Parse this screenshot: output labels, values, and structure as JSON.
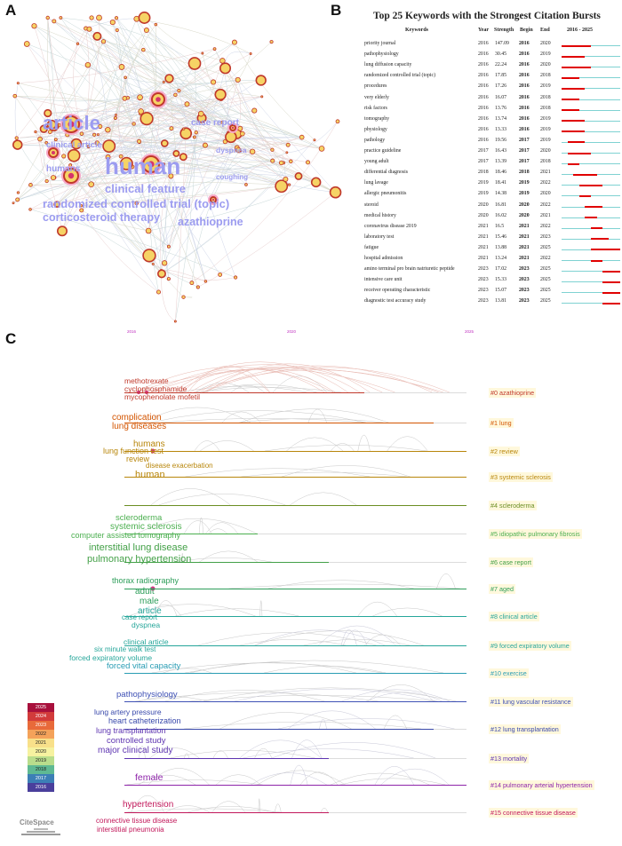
{
  "panels": {
    "a": "A",
    "b": "B",
    "c": "C"
  },
  "network": {
    "keywords": [
      {
        "text": "article",
        "color": "#9c9cf0"
      },
      {
        "text": "human",
        "color": "#9c9cf0"
      },
      {
        "text": "case report",
        "color": "#9c9cf0"
      },
      {
        "text": "clinical article",
        "color": "#9c9cf0"
      },
      {
        "text": "dyspnea",
        "color": "#9c9cf0"
      },
      {
        "text": "humans",
        "color": "#9c9cf0"
      },
      {
        "text": "clinical feature",
        "color": "#9c9cf0"
      },
      {
        "text": "coughing",
        "color": "#9c9cf0"
      },
      {
        "text": "randomized controlled trial (topic)",
        "color": "#9c9cf0"
      },
      {
        "text": "corticosteroid therapy",
        "color": "#9c9cf0"
      },
      {
        "text": "azathioprine",
        "color": "#9c9cf0"
      }
    ]
  },
  "bursts": {
    "title": "Top 25 Keywords with the Strongest Citation Bursts",
    "headers": {
      "keywords": "Keywords",
      "year": "Year",
      "strength": "Strength",
      "begin": "Begin",
      "end": "End",
      "range": "2016 - 2025"
    },
    "range_start": 2016,
    "range_end": 2025,
    "rows": [
      {
        "keyword": "priority journal",
        "year": "2016",
        "strength": "147.09",
        "begin": "2016",
        "end": "2020"
      },
      {
        "keyword": "pathophysiology",
        "year": "2016",
        "strength": "30.45",
        "begin": "2016",
        "end": "2019"
      },
      {
        "keyword": "lung diffusion capacity",
        "year": "2016",
        "strength": "22.24",
        "begin": "2016",
        "end": "2020"
      },
      {
        "keyword": "randomized controlled trial (topic)",
        "year": "2016",
        "strength": "17.85",
        "begin": "2016",
        "end": "2018"
      },
      {
        "keyword": "procedures",
        "year": "2016",
        "strength": "17.26",
        "begin": "2016",
        "end": "2019"
      },
      {
        "keyword": "very elderly",
        "year": "2016",
        "strength": "16.07",
        "begin": "2016",
        "end": "2018"
      },
      {
        "keyword": "risk factors",
        "year": "2016",
        "strength": "13.76",
        "begin": "2016",
        "end": "2018"
      },
      {
        "keyword": "tomography",
        "year": "2016",
        "strength": "13.74",
        "begin": "2016",
        "end": "2019"
      },
      {
        "keyword": "physiology",
        "year": "2016",
        "strength": "13.33",
        "begin": "2016",
        "end": "2019"
      },
      {
        "keyword": "pathology",
        "year": "2016",
        "strength": "19.56",
        "begin": "2017",
        "end": "2019"
      },
      {
        "keyword": "practice guideline",
        "year": "2017",
        "strength": "16.43",
        "begin": "2017",
        "end": "2020"
      },
      {
        "keyword": "young adult",
        "year": "2017",
        "strength": "13.39",
        "begin": "2017",
        "end": "2018"
      },
      {
        "keyword": "differential diagnosis",
        "year": "2018",
        "strength": "18.46",
        "begin": "2018",
        "end": "2021"
      },
      {
        "keyword": "lung lavage",
        "year": "2019",
        "strength": "18.41",
        "begin": "2019",
        "end": "2022"
      },
      {
        "keyword": "allergic pneumonitis",
        "year": "2019",
        "strength": "14.38",
        "begin": "2019",
        "end": "2020"
      },
      {
        "keyword": "steroid",
        "year": "2020",
        "strength": "16.81",
        "begin": "2020",
        "end": "2022"
      },
      {
        "keyword": "medical history",
        "year": "2020",
        "strength": "16.02",
        "begin": "2020",
        "end": "2021"
      },
      {
        "keyword": "coronavirus disease 2019",
        "year": "2021",
        "strength": "16.5",
        "begin": "2021",
        "end": "2022"
      },
      {
        "keyword": "laboratory test",
        "year": "2021",
        "strength": "15.46",
        "begin": "2021",
        "end": "2023"
      },
      {
        "keyword": "fatigue",
        "year": "2021",
        "strength": "13.88",
        "begin": "2021",
        "end": "2025"
      },
      {
        "keyword": "hospital admission",
        "year": "2021",
        "strength": "13.24",
        "begin": "2021",
        "end": "2022"
      },
      {
        "keyword": "amino terminal pro brain natriuretic peptide",
        "year": "2023",
        "strength": "17.02",
        "begin": "2023",
        "end": "2025"
      },
      {
        "keyword": "intensive care unit",
        "year": "2023",
        "strength": "15.33",
        "begin": "2023",
        "end": "2025"
      },
      {
        "keyword": "receiver operating characteristic",
        "year": "2023",
        "strength": "15.07",
        "begin": "2023",
        "end": "2025"
      },
      {
        "keyword": "diagnostic test accuracy study",
        "year": "2023",
        "strength": "13.81",
        "begin": "2023",
        "end": "2025"
      }
    ]
  },
  "timeline": {
    "top_ticks": [
      "2016",
      "2020",
      "2025"
    ],
    "clusters": [
      {
        "label": "#0 azathioprine",
        "color": "#c0392b",
        "words": [
          {
            "text": "methotrexate",
            "size": 8.5
          },
          {
            "text": "cyclophosphamide",
            "size": 8.5
          },
          {
            "text": "mycophenolate mofetil",
            "size": 8.5
          }
        ]
      },
      {
        "label": "#1 lung",
        "color": "#d35400",
        "words": [
          {
            "text": "complication",
            "size": 10
          },
          {
            "text": "lung diseases",
            "size": 10
          }
        ]
      },
      {
        "label": "#2 review",
        "color": "#b8860b",
        "words": [
          {
            "text": "humans",
            "size": 10
          },
          {
            "text": "lung function test",
            "size": 9
          },
          {
            "text": "review",
            "size": 9
          }
        ]
      },
      {
        "label": "#3 systemic sclerosis",
        "color": "#b8860b",
        "words": [
          {
            "text": "disease exacerbation",
            "size": 8
          },
          {
            "text": "human",
            "size": 11
          }
        ]
      },
      {
        "label": "#4 scleroderma",
        "color": "#6b8e23",
        "words": []
      },
      {
        "label": "#5 idiopathic pulmonary fibrosis",
        "color": "#4caf50",
        "words": [
          {
            "text": "scleroderma",
            "size": 9.5
          },
          {
            "text": "systemic sclerosis",
            "size": 10
          },
          {
            "text": "computer assisted tomography",
            "size": 9
          }
        ]
      },
      {
        "label": "#6 case report",
        "color": "#43a047",
        "words": [
          {
            "text": "interstitial lung disease",
            "size": 11
          },
          {
            "text": "pulmonary hypertension",
            "size": 11
          }
        ]
      },
      {
        "label": "#7 aged",
        "color": "#2e9e5a",
        "words": [
          {
            "text": "thorax radiography",
            "size": 9
          },
          {
            "text": "adult",
            "size": 10
          },
          {
            "text": "male",
            "size": 10
          }
        ]
      },
      {
        "label": "#8 clinical article",
        "color": "#26a69a",
        "words": [
          {
            "text": "article",
            "size": 10
          },
          {
            "text": "case report",
            "size": 8
          },
          {
            "text": "dyspnea",
            "size": 8.5
          }
        ]
      },
      {
        "label": "#9 forced expiratory volume",
        "color": "#26a69a",
        "words": [
          {
            "text": "clinical article",
            "size": 8.5
          },
          {
            "text": "six minute walk test",
            "size": 8
          },
          {
            "text": "forced expiratory volume",
            "size": 8.5
          }
        ]
      },
      {
        "label": "#10 exercise",
        "color": "#2a9db4",
        "words": [
          {
            "text": "forced vital capacity",
            "size": 9.5
          }
        ]
      },
      {
        "label": "#11 lung vascular resistance",
        "color": "#3f51b5",
        "words": [
          {
            "text": "pathophysiology",
            "size": 9.5
          }
        ]
      },
      {
        "label": "#12 lung transplantation",
        "color": "#3949ab",
        "words": [
          {
            "text": "lung artery pressure",
            "size": 8.5
          },
          {
            "text": "heart catheterization",
            "size": 9
          }
        ]
      },
      {
        "label": "#13 mortality",
        "color": "#5e35b1",
        "words": [
          {
            "text": "lung transplantation",
            "size": 9
          },
          {
            "text": "controlled study",
            "size": 9.5
          },
          {
            "text": "major clinical study",
            "size": 10
          }
        ]
      },
      {
        "label": "#14 pulmonary arterial hypertension",
        "color": "#8e24aa",
        "words": [
          {
            "text": "female",
            "size": 10.5
          }
        ]
      },
      {
        "label": "#15 connective tissue disease",
        "color": "#c2185b",
        "words": [
          {
            "text": "hypertension",
            "size": 10
          },
          {
            "text": "connective tissue disease",
            "size": 8
          },
          {
            "text": "interstitial pneumonia",
            "size": 8
          }
        ]
      }
    ],
    "legend_years": [
      "2025",
      "2024",
      "2023",
      "2022",
      "2021",
      "2020",
      "2019",
      "2018",
      "2017",
      "2016"
    ],
    "legend_colors": [
      "#a8103c",
      "#d23b3b",
      "#e86a3a",
      "#f4a25a",
      "#f8e08a",
      "#f6f2a0",
      "#b9dd8c",
      "#5fb993",
      "#3c7fb6",
      "#4a3f9c"
    ],
    "logo_text": "CiteSpace"
  }
}
